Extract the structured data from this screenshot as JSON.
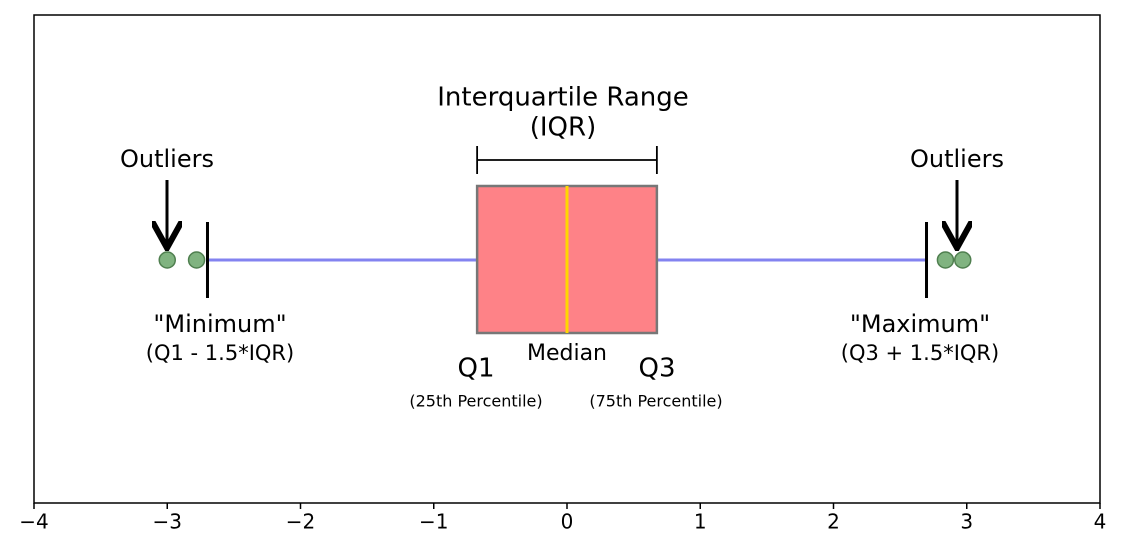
{
  "chart_data": {
    "type": "box",
    "annotations": [
      "Interquartile Range",
      "(IQR)",
      "Outliers",
      "Outliers",
      "\"Minimum\"",
      "(Q1 - 1.5*IQR)",
      "\"Maximum\"",
      "(Q3 + 1.5*IQR)",
      "Q1",
      "Median",
      "Q3",
      "(25th Percentile)",
      "(75th Percentile)"
    ],
    "box": {
      "whisker_low": -2.698,
      "q1": -0.6745,
      "median": 0,
      "q3": 0.6745,
      "whisker_high": 2.698
    },
    "outliers": [
      -3.0,
      -2.78,
      2.84,
      2.97
    ],
    "box_color": "#fe8287",
    "median_color": "#ffd700",
    "whisker_color": "#8383f0",
    "outlier_color": "#80b380",
    "xlim": [
      -4,
      4
    ],
    "xticks": [
      {
        "value": -4,
        "label": "−4"
      },
      {
        "value": -3,
        "label": "−3"
      },
      {
        "value": -2,
        "label": "−2"
      },
      {
        "value": -1,
        "label": "−1"
      },
      0,
      1,
      2,
      3,
      4
    ]
  }
}
